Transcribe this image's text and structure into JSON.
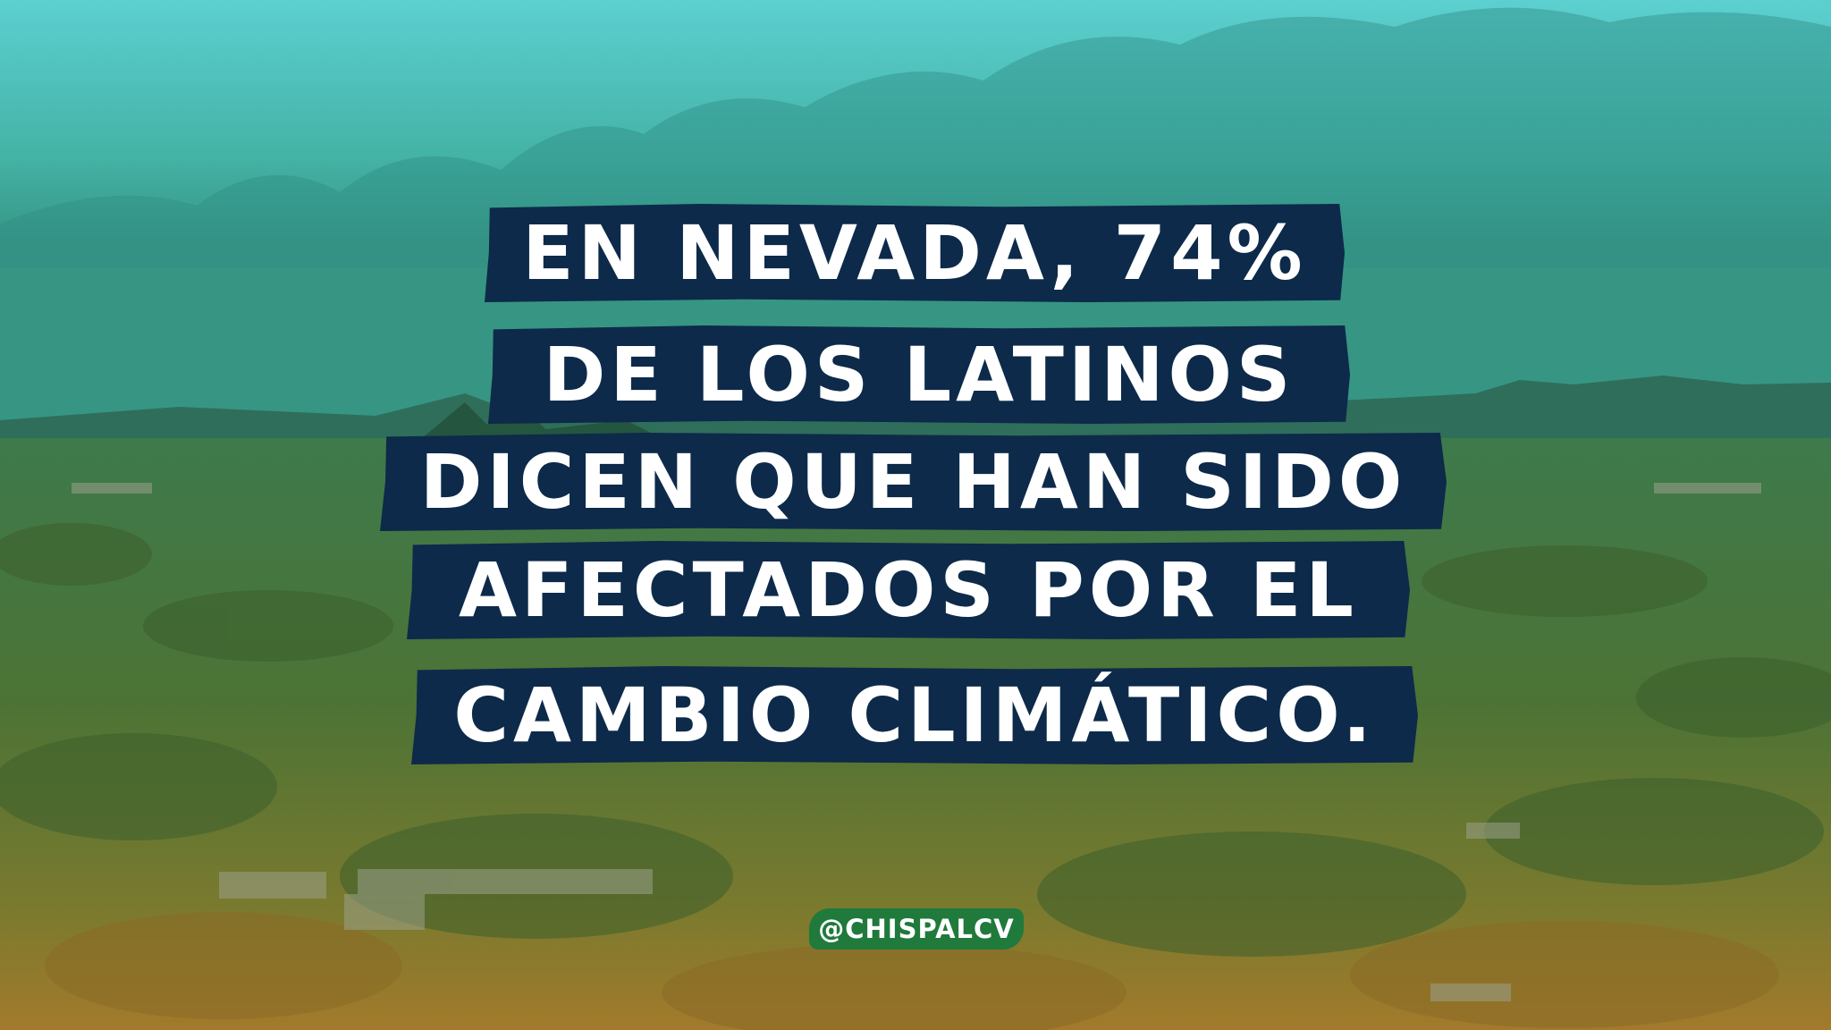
{
  "image": {
    "description_colors": {
      "sky_top": "#55c9c9",
      "horizon": "#3f7d4a",
      "ground_bottom": "#a27a2a",
      "banner": "#0d2a4a",
      "handle_badge": "#1f7a3c",
      "text": "#ffffff"
    }
  },
  "headline": {
    "lines": [
      "EN NEVADA, 74%",
      "DE LOS LATINOS",
      "DICEN QUE HAN SIDO",
      "AFECTADOS POR EL",
      "CAMBIO CLIMÁTICO."
    ]
  },
  "social": {
    "handle": "@CHISPALCV"
  }
}
